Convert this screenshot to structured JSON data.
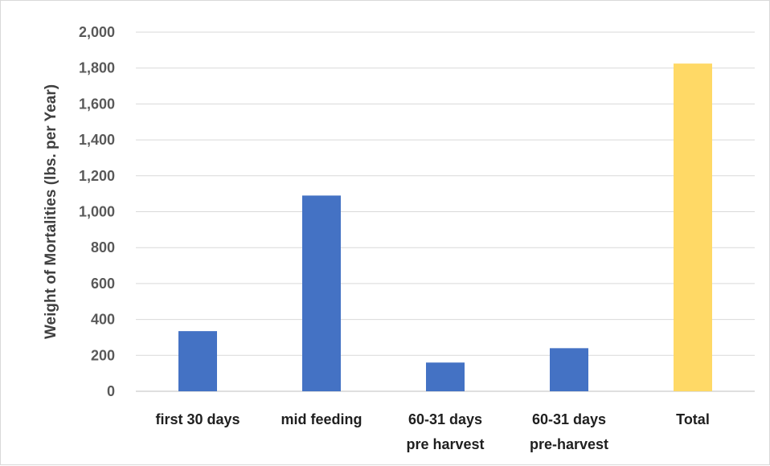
{
  "chart_data": {
    "type": "bar",
    "ylabel": "Weight of Mortalities (lbs. per Year)",
    "xlabel": "",
    "ylim": [
      0,
      2000
    ],
    "y_ticks": [
      0,
      200,
      400,
      600,
      800,
      1000,
      1200,
      1400,
      1600,
      1800,
      2000
    ],
    "y_tick_labels": [
      "0",
      "200",
      "400",
      "600",
      "800",
      "1,000",
      "1,200",
      "1,400",
      "1,600",
      "1,800",
      "2,000"
    ],
    "categories": [
      [
        "first 30 days"
      ],
      [
        "mid feeding"
      ],
      [
        "60-31 days",
        "pre harvest"
      ],
      [
        "60-31 days",
        "pre-harvest"
      ],
      [
        "Total"
      ]
    ],
    "values": [
      335,
      1090,
      160,
      240,
      1825
    ],
    "bar_colors": [
      "#4472c4",
      "#4472c4",
      "#4472c4",
      "#4472c4",
      "#ffd966"
    ],
    "grid": true,
    "legend": "none"
  }
}
